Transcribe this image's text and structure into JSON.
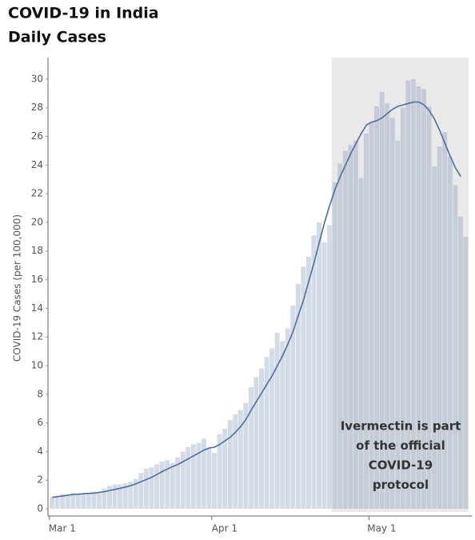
{
  "chart_data": {
    "type": "bar",
    "title_lines": [
      "COVID-19 in India",
      "Daily Cases"
    ],
    "y_label": "COVID-19 Cases (per 100,000)",
    "annotation_lines": [
      "Ivermectin is part",
      "of the official",
      "COVID-19",
      "protocol"
    ],
    "categories": [
      null,
      "Mar 1",
      null,
      null,
      null,
      null,
      null,
      null,
      null,
      null,
      null,
      null,
      null,
      null,
      null,
      null,
      null,
      null,
      null,
      null,
      null,
      null,
      null,
      null,
      null,
      null,
      null,
      null,
      null,
      null,
      null,
      null,
      "Apr 1",
      null,
      null,
      null,
      null,
      null,
      null,
      null,
      null,
      null,
      null,
      null,
      null,
      null,
      null,
      null,
      null,
      null,
      null,
      null,
      null,
      null,
      null,
      null,
      null,
      null,
      null,
      null,
      null,
      null,
      "May 1",
      null,
      null,
      null,
      null,
      null,
      null,
      null,
      null,
      null,
      null,
      null,
      null,
      null,
      null,
      null,
      null,
      null
    ],
    "series": [
      {
        "color": "#d3dbe7",
        "shaded_color": "#c5ccd8",
        "values": [
          0.8,
          0.9,
          1.0,
          1.0,
          1.1,
          1.1,
          1.1,
          1.1,
          1.2,
          1.2,
          1.4,
          1.6,
          1.7,
          1.7,
          1.8,
          1.9,
          2.1,
          2.5,
          2.8,
          2.9,
          3.1,
          3.3,
          3.4,
          3.2,
          3.6,
          4.0,
          4.3,
          4.5,
          4.6,
          4.9,
          4.2,
          3.9,
          5.2,
          5.6,
          6.2,
          6.6,
          6.9,
          7.4,
          8.5,
          9.2,
          9.8,
          10.6,
          11.2,
          12.3,
          11.7,
          12.6,
          14.2,
          15.7,
          16.9,
          17.6,
          19.1,
          20.0,
          18.6,
          19.8,
          22.8,
          24.1,
          25.0,
          25.4,
          25.7,
          23.1,
          26.2,
          27.0,
          28.1,
          29.1,
          28.3,
          27.3,
          25.7,
          28.0,
          29.9,
          30.0,
          29.5,
          29.3,
          28.1,
          23.9,
          25.3,
          26.3,
          24.6,
          22.6,
          20.4,
          19.0
        ]
      },
      {
        "type": "line",
        "color": "#4e6f9b",
        "values": [
          0.8,
          0.85,
          0.9,
          0.95,
          1.0,
          1.02,
          1.05,
          1.08,
          1.1,
          1.15,
          1.2,
          1.28,
          1.36,
          1.44,
          1.52,
          1.62,
          1.75,
          1.9,
          2.05,
          2.2,
          2.4,
          2.6,
          2.78,
          2.95,
          3.1,
          3.3,
          3.5,
          3.7,
          3.9,
          4.1,
          4.25,
          4.3,
          4.5,
          4.75,
          5.0,
          5.35,
          5.75,
          6.25,
          6.9,
          7.5,
          8.1,
          8.7,
          9.3,
          10.0,
          10.7,
          11.5,
          12.4,
          13.5,
          14.6,
          15.9,
          17.2,
          18.6,
          20.0,
          21.2,
          22.3,
          23.2,
          24.0,
          24.8,
          25.5,
          26.2,
          26.8,
          27.0,
          27.1,
          27.3,
          27.6,
          27.9,
          28.1,
          28.2,
          28.3,
          28.4,
          28.4,
          28.2,
          27.8,
          27.2,
          26.4,
          25.5,
          24.6,
          23.8,
          23.2,
          null
        ]
      }
    ],
    "shaded_from_index": 54,
    "shade_color": "#e9e9e9",
    "ylim": [
      -0.5,
      31.5
    ],
    "yticks": [
      0,
      2,
      4,
      6,
      8,
      10,
      12,
      14,
      16,
      18,
      20,
      22,
      24,
      26,
      28,
      30
    ]
  }
}
